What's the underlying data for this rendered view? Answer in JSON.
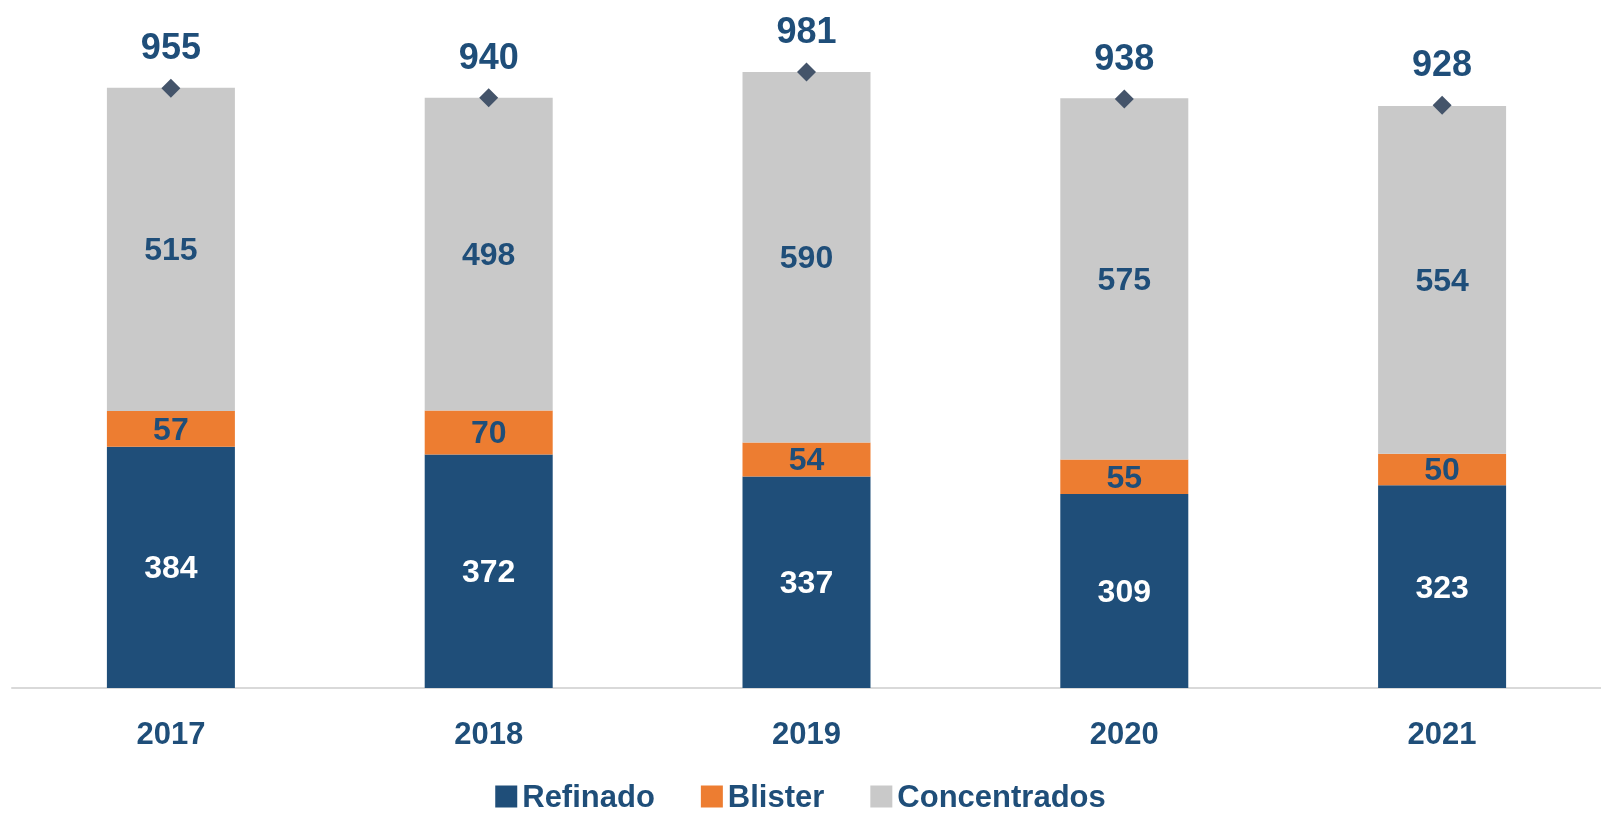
{
  "chart_data": {
    "type": "bar",
    "stacked": true,
    "categories": [
      "2017",
      "2018",
      "2019",
      "2020",
      "2021"
    ],
    "series": [
      {
        "name": "Refinado",
        "color": "#1f4e79",
        "values": [
          384,
          372,
          337,
          309,
          323
        ]
      },
      {
        "name": "Blister",
        "color": "#ed7d31",
        "values": [
          57,
          70,
          54,
          55,
          50
        ]
      },
      {
        "name": "Concentrados",
        "color": "#c9c9c9",
        "values": [
          515,
          498,
          590,
          575,
          554
        ]
      },
      {
        "type": "scatter",
        "color": "#44546a",
        "values": [
          955,
          940,
          981,
          938,
          928
        ]
      }
    ],
    "data_labels": true,
    "marker": "diamond",
    "legend": "bottom",
    "tick_labels": "x"
  }
}
